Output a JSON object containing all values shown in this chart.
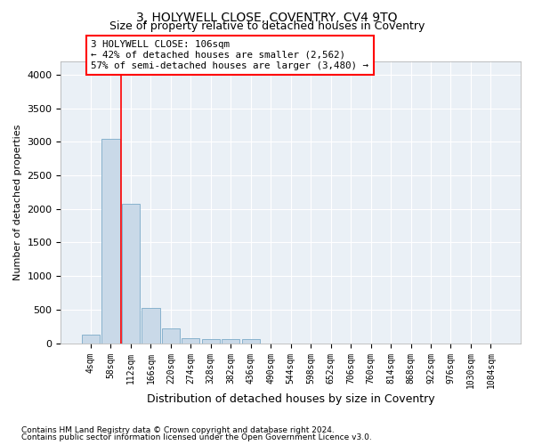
{
  "title": "3, HOLYWELL CLOSE, COVENTRY, CV4 9TQ",
  "subtitle": "Size of property relative to detached houses in Coventry",
  "xlabel": "Distribution of detached houses by size in Coventry",
  "ylabel": "Number of detached properties",
  "footnote1": "Contains HM Land Registry data © Crown copyright and database right 2024.",
  "footnote2": "Contains public sector information licensed under the Open Government Licence v3.0.",
  "bar_labels": [
    "4sqm",
    "58sqm",
    "112sqm",
    "166sqm",
    "220sqm",
    "274sqm",
    "328sqm",
    "382sqm",
    "436sqm",
    "490sqm",
    "544sqm",
    "598sqm",
    "652sqm",
    "706sqm",
    "760sqm",
    "814sqm",
    "868sqm",
    "922sqm",
    "976sqm",
    "1030sqm",
    "1084sqm"
  ],
  "bar_values": [
    130,
    3050,
    2080,
    530,
    220,
    80,
    55,
    55,
    55,
    0,
    0,
    0,
    0,
    0,
    0,
    0,
    0,
    0,
    0,
    0,
    0
  ],
  "bar_color": "#c9d9e8",
  "bar_edge_color": "#7baac8",
  "vline_color": "red",
  "vline_x_index": 1.5,
  "ylim": [
    0,
    4200
  ],
  "yticks": [
    0,
    500,
    1000,
    1500,
    2000,
    2500,
    3000,
    3500,
    4000
  ],
  "annotation_line1": "3 HOLYWELL CLOSE: 106sqm",
  "annotation_line2": "← 42% of detached houses are smaller (2,562)",
  "annotation_line3": "57% of semi-detached houses are larger (3,480) →",
  "annotation_box_color": "white",
  "annotation_box_edge_color": "red",
  "bg_color": "#eaf0f6",
  "grid_color": "white",
  "title_fontsize": 10,
  "subtitle_fontsize": 9
}
